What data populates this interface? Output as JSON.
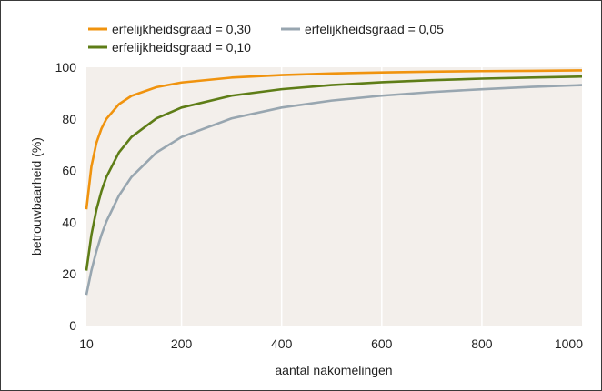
{
  "chart_data": {
    "type": "line",
    "title": "",
    "xlabel": "aantal nakomelingen",
    "ylabel": "betrouwbaarheid (%)",
    "xlim": [
      10,
      1000
    ],
    "ylim": [
      0,
      100
    ],
    "x_ticks": [
      10,
      200,
      400,
      600,
      800,
      1000
    ],
    "x_tick_labels": [
      "10",
      "200",
      "400",
      "600",
      "800",
      "1000"
    ],
    "y_ticks": [
      0,
      20,
      40,
      60,
      80,
      100
    ],
    "y_tick_labels": [
      "0",
      "20",
      "40",
      "60",
      "80",
      "100"
    ],
    "grid": "vertical",
    "legend_position": "top",
    "background_color": "#f3efeb",
    "grid_color": "#ffffff",
    "series": [
      {
        "name": "erfelijkheidsgraad = 0,30",
        "color": "#f0930e",
        "x": [
          10,
          20,
          30,
          40,
          50,
          75,
          100,
          150,
          200,
          300,
          400,
          500,
          600,
          700,
          800,
          900,
          1000
        ],
        "y": [
          45,
          61.6,
          70.7,
          76.2,
          80.0,
          85.7,
          88.9,
          92.3,
          94.1,
          96.0,
          97.0,
          97.6,
          98.0,
          98.3,
          98.5,
          98.6,
          98.8
        ]
      },
      {
        "name": "erfelijkheidsgraad = 0,10",
        "color": "#5e7d17",
        "x": [
          10,
          20,
          30,
          40,
          50,
          75,
          100,
          150,
          200,
          300,
          400,
          500,
          600,
          700,
          800,
          900,
          1000
        ],
        "y": [
          21.3,
          35.1,
          44.8,
          52.0,
          57.5,
          67.0,
          73.0,
          80.2,
          84.4,
          89.0,
          91.5,
          93.1,
          94.2,
          95.0,
          95.6,
          96.0,
          96.4
        ]
      },
      {
        "name": "erfelijkheidsgraad = 0,05",
        "color": "#98a6b0",
        "x": [
          10,
          20,
          30,
          40,
          50,
          75,
          100,
          150,
          200,
          300,
          400,
          500,
          600,
          700,
          800,
          900,
          1000
        ],
        "y": [
          11.9,
          21.3,
          28.8,
          35.1,
          40.3,
          50.3,
          57.5,
          67.0,
          73.0,
          80.2,
          84.4,
          87.1,
          89.0,
          90.4,
          91.5,
          92.4,
          93.1
        ]
      }
    ]
  }
}
